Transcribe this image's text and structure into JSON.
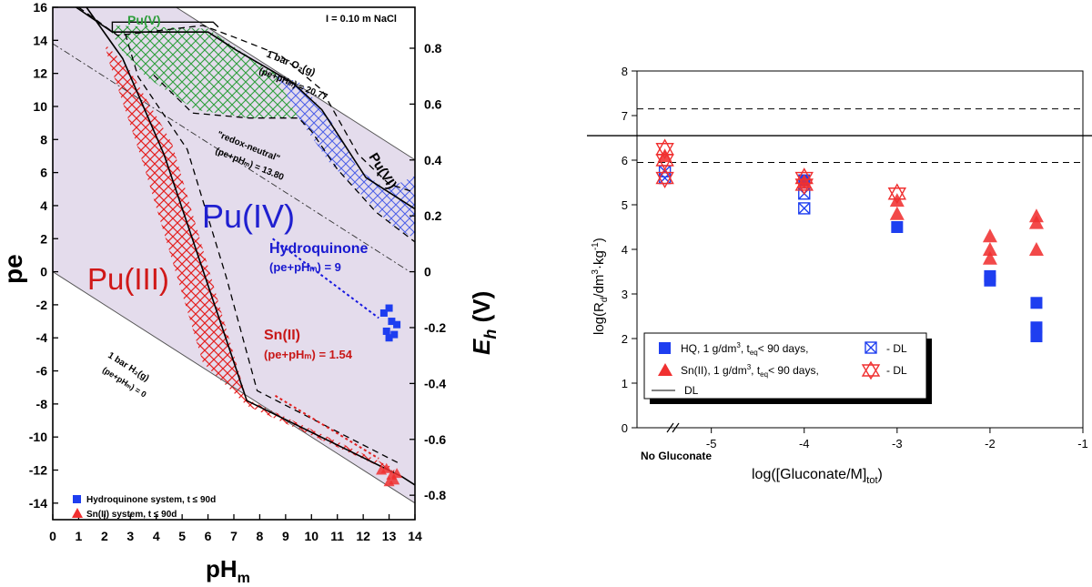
{
  "colors": {
    "pourbaix_bg": "#e4dcec",
    "pu5_hatch": "#2e9e3c",
    "pu6_hatch": "#4a5ee8",
    "pu3_hatch": "#e42020",
    "hq_blue": "#1e3ef0",
    "sn_red": "#f03030",
    "pu4_text": "#2020d0",
    "pu3_text": "#d01818",
    "pu5_text": "#2e9e3c"
  },
  "chart_data": [
    {
      "type": "scatter",
      "subtype": "pourbaix-diagram",
      "xlabel_main": "pH",
      "xlabel_sub": "m",
      "ylabel": "pe",
      "y2label_main": "E",
      "y2label_sub": "h",
      "y2label_unit": " (V)",
      "xlim": [
        0,
        14
      ],
      "ylim": [
        -15,
        16
      ],
      "x_ticks": [
        "0",
        "1",
        "2",
        "3",
        "4",
        "5",
        "6",
        "7",
        "8",
        "9",
        "10",
        "11",
        "12",
        "13",
        "14"
      ],
      "y_ticks": [
        "16",
        "14",
        "12",
        "10",
        "8",
        "6",
        "4",
        "2",
        "0",
        "-2",
        "-4",
        "-6",
        "-8",
        "-10",
        "-12",
        "-14"
      ],
      "y2_ticks": [
        "0.8",
        "0.6",
        "0.4",
        "0.2",
        "0",
        "-0.2",
        "-0.4",
        "-0.6",
        "-0.8"
      ],
      "condition_label": "I = 0.10 m NaCl",
      "region_labels": {
        "pu3": "Pu(III)",
        "pu4": "Pu(IV)",
        "pu5": "Pu(V)",
        "pu6": "Pu(VI)"
      },
      "line_labels": {
        "o2_a": "1 bar O₂(g)",
        "o2_b": "(pe+pHₘ) = 20.77",
        "redox_a": "\"redox-neutral\"",
        "redox_b": "(pe+pHₘ) = 13.80",
        "h2_a": "1 bar H₂(g)",
        "h2_b": "(pe+pHₘ) = 0",
        "hq_a": "Hydroquinone",
        "hq_b": "(pe+pHₘ) = 9",
        "sn_a": "Sn(II)",
        "sn_b": "(pe+pHₘ) = 1.54"
      },
      "legend": {
        "hq": "Hydroquinone system, t ≤ 90d",
        "sn": "Sn(II) system, t ≤ 90d"
      },
      "hq_points": [
        [
          12.8,
          -2.5
        ],
        [
          13.0,
          -2.2
        ],
        [
          13.1,
          -3.0
        ],
        [
          12.9,
          -3.6
        ],
        [
          13.2,
          -3.8
        ],
        [
          13.3,
          -3.2
        ],
        [
          13.0,
          -4.0
        ]
      ],
      "sn_points": [
        [
          12.7,
          -12.0
        ],
        [
          12.9,
          -11.9
        ],
        [
          13.1,
          -12.3
        ],
        [
          13.2,
          -12.6
        ],
        [
          13.3,
          -12.2
        ],
        [
          13.0,
          -12.7
        ]
      ]
    },
    {
      "type": "scatter",
      "ylabel_main": "log(R",
      "ylabel_sub": "d",
      "ylabel_rest": "/dm",
      "ylabel_sup1": "3",
      "ylabel_rest2": "·kg",
      "ylabel_sup2": "-1",
      "ylabel_end": ")",
      "xlabel_main": "log([Gluconate/M]",
      "xlabel_sub": "tot",
      "xlabel_end": ")",
      "xlim": [
        -5.8,
        -1
      ],
      "ylim": [
        0,
        8
      ],
      "x_ticks": [
        "-5",
        "-4",
        "-3",
        "-2",
        "-1"
      ],
      "y_ticks": [
        "0",
        "1",
        "2",
        "3",
        "4",
        "5",
        "6",
        "7",
        "8"
      ],
      "no_gluconate_label": "No Gluconate",
      "dl_solid": 6.55,
      "dl_dashed": [
        7.15,
        5.95
      ],
      "series": [
        {
          "name": "HQ, 1 g/dm3, teq< 90 days,",
          "marker": "square-filled",
          "points": [
            [
              -4,
              5.55
            ],
            [
              -3,
              4.5
            ],
            [
              -2,
              3.3
            ],
            [
              -2,
              3.4
            ],
            [
              -1.5,
              2.8
            ],
            [
              -1.5,
              2.25
            ],
            [
              -1.5,
              2.05
            ]
          ]
        },
        {
          "name": "HQ - DL",
          "marker": "square-cross",
          "points": [
            [
              -5.5,
              5.75
            ],
            [
              -5.5,
              5.6
            ],
            [
              -4,
              5.25
            ],
            [
              -4,
              4.92
            ]
          ]
        },
        {
          "name": "Sn(II), 1 g/dm3, teq< 90 days,",
          "marker": "triangle-filled",
          "points": [
            [
              -5.5,
              6.1
            ],
            [
              -4,
              5.5
            ],
            [
              -3,
              4.8
            ],
            [
              -3,
              5.1
            ],
            [
              -2,
              4.3
            ],
            [
              -2,
              4.0
            ],
            [
              -2,
              3.8
            ],
            [
              -1.5,
              4.75
            ],
            [
              -1.5,
              4.6
            ],
            [
              -1.5,
              4.0
            ]
          ]
        },
        {
          "name": "Sn(II) - DL",
          "marker": "star-cross",
          "points": [
            [
              -5.5,
              6.25
            ],
            [
              -5.5,
              6.0
            ],
            [
              -5.5,
              5.6
            ],
            [
              -4,
              5.6
            ],
            [
              -4,
              5.45
            ],
            [
              -3,
              5.25
            ]
          ]
        }
      ],
      "legend": {
        "hq_a": "HQ, 1 g/dm",
        "hq_sup": "3",
        "hq_b": ", t",
        "hq_sub": "eq",
        "hq_c": "< 90 days,",
        "sn_a": "Sn(II), 1 g/dm",
        "sn_sup": "3",
        "sn_b": ", t",
        "sn_sub": "eq",
        "sn_c": "< 90 days,",
        "dl_mark": "- DL",
        "dl_line": "DL"
      }
    }
  ]
}
